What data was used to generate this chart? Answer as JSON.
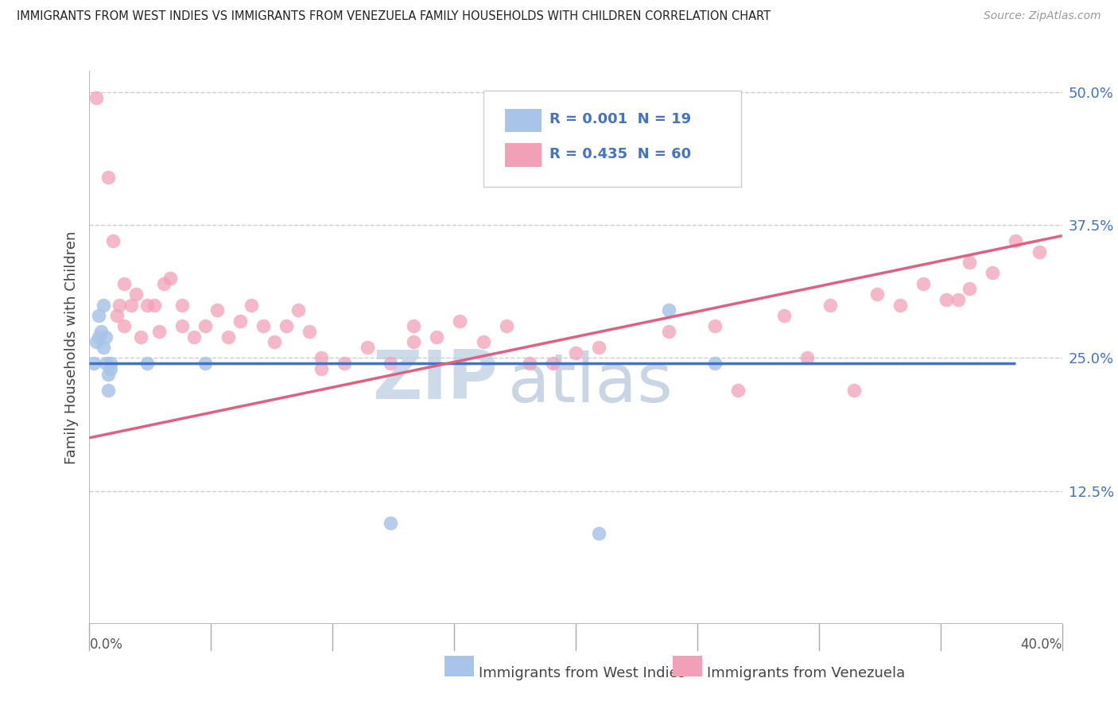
{
  "title": "IMMIGRANTS FROM WEST INDIES VS IMMIGRANTS FROM VENEZUELA FAMILY HOUSEHOLDS WITH CHILDREN CORRELATION CHART",
  "source": "Source: ZipAtlas.com",
  "ylabel": "Family Households with Children",
  "x_left_label": "0.0%",
  "x_right_label": "40.0%",
  "x_bottom_label1": "Immigrants from West Indies",
  "x_bottom_label2": "Immigrants from Venezuela",
  "legend_blue_r": "R = 0.001",
  "legend_blue_n": "N = 19",
  "legend_pink_r": "R = 0.435",
  "legend_pink_n": "N = 60",
  "blue_color": "#a8c4e8",
  "pink_color": "#f2a0b8",
  "blue_line_color": "#4472c4",
  "pink_line_color": "#e06080",
  "legend_text_color": "#4472c4",
  "watermark_zip_color": "#d0dff0",
  "watermark_atlas_color": "#c0cfe8",
  "background_color": "#ffffff",
  "grid_color": "#cccccc",
  "right_axis_color": "#4472c4",
  "axis_color": "#aaaaaa",
  "ylim": [
    0.0,
    0.52
  ],
  "xlim": [
    0.0,
    0.42
  ],
  "yticks_right": [
    0.125,
    0.25,
    0.375,
    0.5
  ],
  "ytick_labels_right": [
    "12.5%",
    "25.0%",
    "37.5%",
    "50.0%"
  ],
  "blue_scatter_x": [
    0.002,
    0.003,
    0.004,
    0.004,
    0.005,
    0.006,
    0.006,
    0.007,
    0.007,
    0.008,
    0.008,
    0.009,
    0.009,
    0.025,
    0.05,
    0.13,
    0.22,
    0.25,
    0.27
  ],
  "blue_scatter_y": [
    0.245,
    0.265,
    0.29,
    0.27,
    0.275,
    0.26,
    0.3,
    0.245,
    0.27,
    0.235,
    0.22,
    0.245,
    0.24,
    0.245,
    0.245,
    0.095,
    0.085,
    0.295,
    0.245
  ],
  "pink_scatter_x": [
    0.003,
    0.008,
    0.01,
    0.012,
    0.013,
    0.015,
    0.015,
    0.018,
    0.02,
    0.022,
    0.025,
    0.028,
    0.03,
    0.032,
    0.035,
    0.04,
    0.04,
    0.045,
    0.05,
    0.055,
    0.06,
    0.065,
    0.07,
    0.075,
    0.08,
    0.085,
    0.09,
    0.095,
    0.1,
    0.1,
    0.11,
    0.12,
    0.13,
    0.14,
    0.14,
    0.15,
    0.16,
    0.17,
    0.18,
    0.19,
    0.2,
    0.21,
    0.22,
    0.25,
    0.27,
    0.28,
    0.3,
    0.31,
    0.32,
    0.33,
    0.34,
    0.35,
    0.36,
    0.37,
    0.375,
    0.38,
    0.38,
    0.39,
    0.4,
    0.41
  ],
  "pink_scatter_y": [
    0.495,
    0.42,
    0.36,
    0.29,
    0.3,
    0.32,
    0.28,
    0.3,
    0.31,
    0.27,
    0.3,
    0.3,
    0.275,
    0.32,
    0.325,
    0.28,
    0.3,
    0.27,
    0.28,
    0.295,
    0.27,
    0.285,
    0.3,
    0.28,
    0.265,
    0.28,
    0.295,
    0.275,
    0.25,
    0.24,
    0.245,
    0.26,
    0.245,
    0.28,
    0.265,
    0.27,
    0.285,
    0.265,
    0.28,
    0.245,
    0.245,
    0.255,
    0.26,
    0.275,
    0.28,
    0.22,
    0.29,
    0.25,
    0.3,
    0.22,
    0.31,
    0.3,
    0.32,
    0.305,
    0.305,
    0.315,
    0.34,
    0.33,
    0.36,
    0.35
  ],
  "blue_line_x": [
    0.0,
    0.4
  ],
  "blue_line_y": [
    0.245,
    0.245
  ],
  "pink_line_x": [
    0.0,
    0.42
  ],
  "pink_line_y": [
    0.175,
    0.365
  ]
}
